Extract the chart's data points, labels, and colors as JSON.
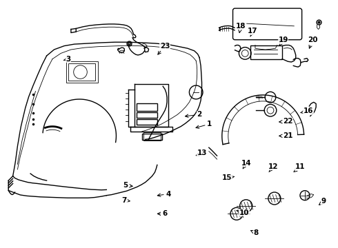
{
  "background_color": "#ffffff",
  "line_color": "#000000",
  "fig_width": 4.9,
  "fig_height": 3.6,
  "dpi": 100,
  "label_positions": {
    "1": [
      0.62,
      0.5,
      0.572,
      0.518
    ],
    "2": [
      0.59,
      0.462,
      0.54,
      0.47
    ],
    "3": [
      0.202,
      0.238,
      0.182,
      0.245
    ],
    "4": [
      0.498,
      0.782,
      0.458,
      0.79
    ],
    "5": [
      0.372,
      0.748,
      0.4,
      0.752
    ],
    "6": [
      0.488,
      0.862,
      0.458,
      0.862
    ],
    "7": [
      0.368,
      0.808,
      0.392,
      0.812
    ],
    "8": [
      0.758,
      0.94,
      0.74,
      0.928
    ],
    "9": [
      0.958,
      0.812,
      0.942,
      0.828
    ],
    "10": [
      0.722,
      0.858,
      0.698,
      0.848
    ],
    "11": [
      0.888,
      0.672,
      0.868,
      0.695
    ],
    "12": [
      0.808,
      0.672,
      0.792,
      0.7
    ],
    "13": [
      0.598,
      0.618,
      0.578,
      0.628
    ],
    "14": [
      0.728,
      0.658,
      0.718,
      0.682
    ],
    "15": [
      0.672,
      0.718,
      0.7,
      0.71
    ],
    "16": [
      0.912,
      0.448,
      0.888,
      0.455
    ],
    "17": [
      0.748,
      0.125,
      0.738,
      0.155
    ],
    "18": [
      0.712,
      0.105,
      0.708,
      0.135
    ],
    "19": [
      0.838,
      0.162,
      0.822,
      0.192
    ],
    "20": [
      0.925,
      0.162,
      0.912,
      0.205
    ],
    "21": [
      0.852,
      0.548,
      0.818,
      0.548
    ],
    "22": [
      0.852,
      0.49,
      0.818,
      0.492
    ],
    "23": [
      0.488,
      0.185,
      0.462,
      0.228
    ]
  }
}
